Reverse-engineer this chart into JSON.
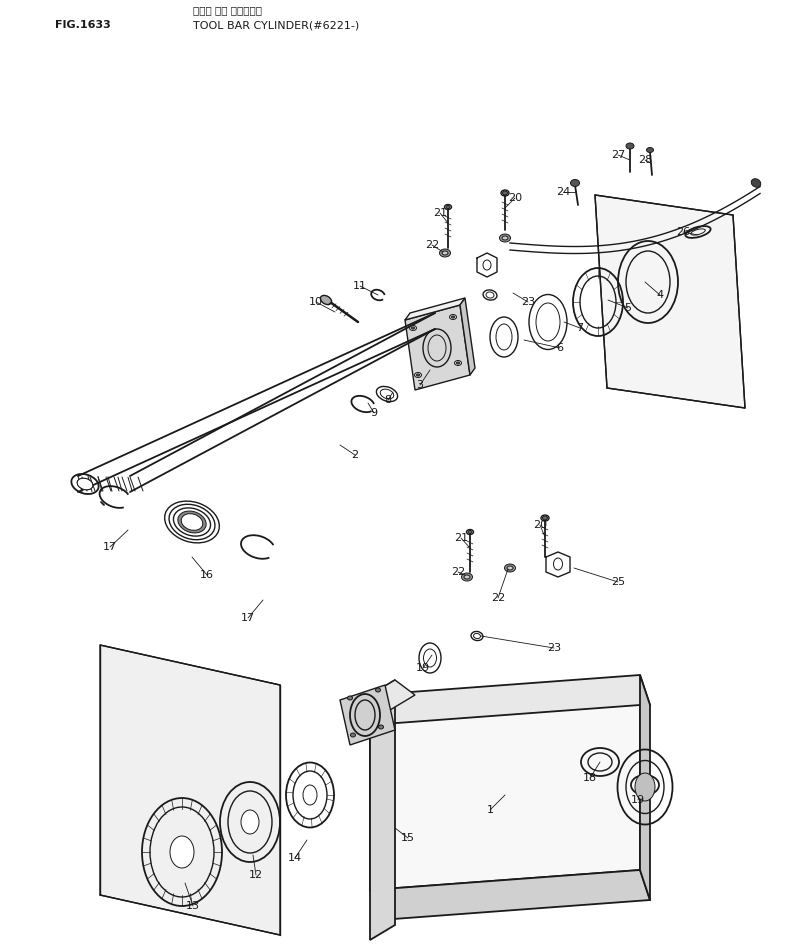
{
  "title_line1": "ツール バー シリンダー",
  "title_line2": "TOOL BAR CYLINDER(#6221-)",
  "fig_label": "FIG.1633",
  "bg_color": "#ffffff",
  "line_color": "#1a1a1a",
  "figsize": [
    7.95,
    9.52
  ],
  "dpi": 100
}
